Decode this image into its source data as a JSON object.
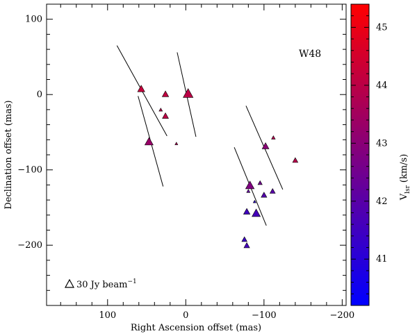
{
  "chart_data": {
    "type": "scatter",
    "title": "W48",
    "xlabel": "Right Ascension offset (mas)",
    "ylabel": "Declination offset (mas)",
    "xlim": [
      178,
      -205
    ],
    "ylim": [
      -280,
      120
    ],
    "xticks": [
      100,
      0,
      -100,
      -200
    ],
    "xtick_labels": [
      "100",
      "0",
      "−100",
      "−200"
    ],
    "yticks": [
      100,
      0,
      -100,
      -200
    ],
    "ytick_labels": [
      "100",
      "0",
      "−100",
      "−200"
    ],
    "colorbar": {
      "label_main": "V",
      "label_sub": "lsr",
      "label_unit": "(km/s)",
      "min": 40.2,
      "max": 45.4,
      "ticks": [
        41,
        42,
        43,
        44,
        45
      ],
      "tick_labels": [
        "41",
        "42",
        "43",
        "44",
        "45"
      ],
      "low_color": "#0000ff",
      "high_color": "#ff0000"
    },
    "legend": {
      "text": "30 Jy beam",
      "superscript": "−1",
      "reference_flux": 30
    },
    "points": [
      {
        "ra": 57,
        "dec": 8,
        "vlsr": 44.2,
        "flux": 22
      },
      {
        "ra": 26,
        "dec": 1,
        "vlsr": 44.1,
        "flux": 18
      },
      {
        "ra": -3,
        "dec": 2,
        "vlsr": 44.0,
        "flux": 42
      },
      {
        "ra": 32,
        "dec": -20,
        "vlsr": 43.9,
        "flux": 5
      },
      {
        "ra": 26,
        "dec": -28,
        "vlsr": 44.0,
        "flux": 16
      },
      {
        "ra": 47,
        "dec": -62,
        "vlsr": 43.3,
        "flux": 30
      },
      {
        "ra": 12,
        "dec": -65,
        "vlsr": 43.7,
        "flux": 3
      },
      {
        "ra": -112,
        "dec": -57,
        "vlsr": 43.8,
        "flux": 6
      },
      {
        "ra": -102,
        "dec": -68,
        "vlsr": 43.0,
        "flux": 20
      },
      {
        "ra": -140,
        "dec": -87,
        "vlsr": 43.9,
        "flux": 12
      },
      {
        "ra": -95,
        "dec": -117,
        "vlsr": 42.5,
        "flux": 8
      },
      {
        "ra": -82,
        "dec": -120,
        "vlsr": 42.8,
        "flux": 32
      },
      {
        "ra": -111,
        "dec": -128,
        "vlsr": 42.0,
        "flux": 12
      },
      {
        "ra": -100,
        "dec": -133,
        "vlsr": 41.9,
        "flux": 14
      },
      {
        "ra": -80,
        "dec": -128,
        "vlsr": 42.2,
        "flux": 5
      },
      {
        "ra": -88,
        "dec": -142,
        "vlsr": 41.0,
        "flux": 2
      },
      {
        "ra": -78,
        "dec": -155,
        "vlsr": 41.5,
        "flux": 18
      },
      {
        "ra": -90,
        "dec": -157,
        "vlsr": 41.6,
        "flux": 30
      },
      {
        "ra": -75,
        "dec": -192,
        "vlsr": 41.4,
        "flux": 12
      },
      {
        "ra": -78,
        "dec": -200,
        "vlsr": 41.6,
        "flux": 14
      }
    ],
    "line_segments": [
      {
        "from": [
          88,
          65
        ],
        "to": [
          24,
          -55
        ]
      },
      {
        "from": [
          61,
          -2
        ],
        "to": [
          29,
          -122
        ]
      },
      {
        "from": [
          11,
          56
        ],
        "to": [
          -13,
          -56
        ]
      },
      {
        "from": [
          -77,
          -15
        ],
        "to": [
          -124,
          -126
        ]
      },
      {
        "from": [
          -62,
          -70
        ],
        "to": [
          -103,
          -174
        ]
      }
    ]
  }
}
